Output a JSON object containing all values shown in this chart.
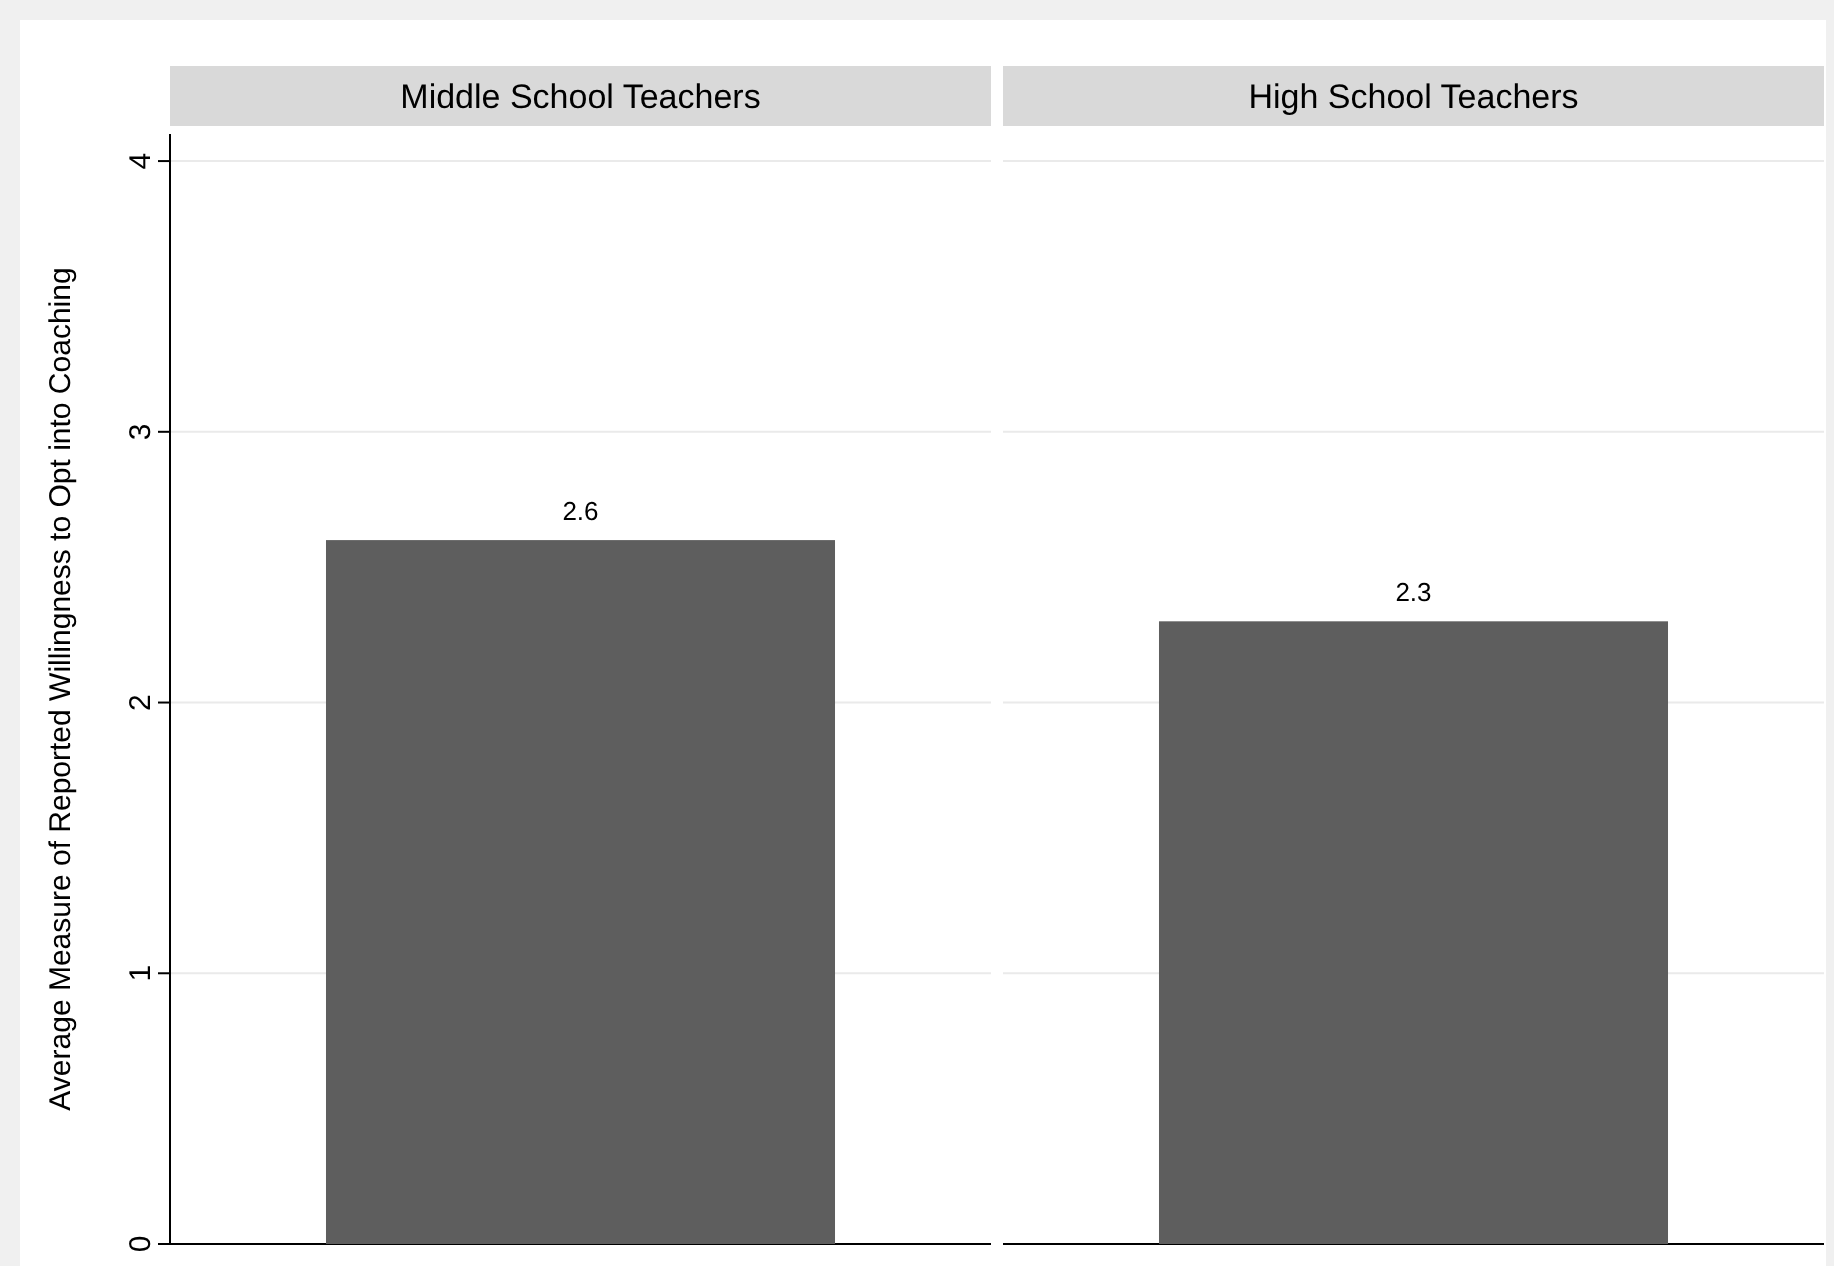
{
  "chart_data": {
    "type": "bar",
    "ylabel": "Average Measure of Reported Willingness to Opt into Coaching",
    "categories": [
      "Middle School Teachers",
      "High School Teachers"
    ],
    "values": [
      2.6,
      2.3
    ],
    "color": "#5e5e5e",
    "ylim": [
      0,
      4.1
    ],
    "yticks": [
      0,
      1,
      2,
      3,
      4
    ],
    "grid": "y",
    "data_labels": true
  }
}
